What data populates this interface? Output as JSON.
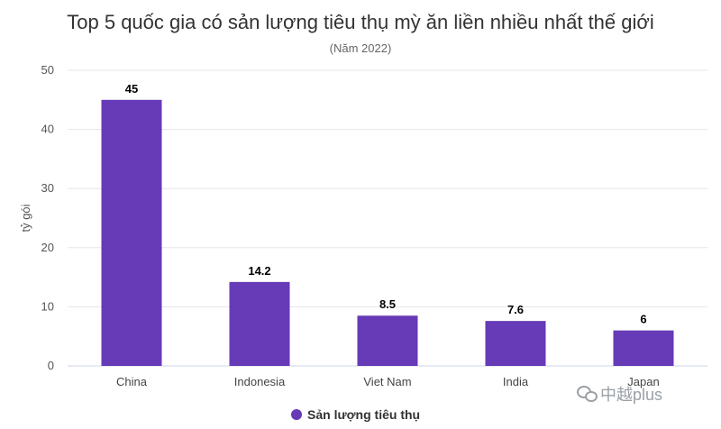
{
  "chart_data": {
    "type": "bar",
    "title": "Top 5 quốc gia có sản lượng tiêu thụ mỳ ăn liền nhiều nhất thế giới",
    "subtitle": "(Năm 2022)",
    "xlabel": "",
    "ylabel": "tỷ gói",
    "ylim": [
      0,
      50
    ],
    "yticks": [
      0,
      10,
      20,
      30,
      40,
      50
    ],
    "categories": [
      "China",
      "Indonesia",
      "Viet Nam",
      "India",
      "Japan"
    ],
    "series": [
      {
        "name": "Sản lượng tiêu thụ",
        "values": [
          45,
          14.2,
          8.5,
          7.6,
          6
        ]
      }
    ],
    "data_labels": [
      "45",
      "14.2",
      "8.5",
      "7.6",
      "6"
    ],
    "color": "#673ab7",
    "grid": true,
    "legend_position": "bottom-center"
  },
  "watermark": {
    "text": "中越plus",
    "icon": "wechat-icon"
  }
}
